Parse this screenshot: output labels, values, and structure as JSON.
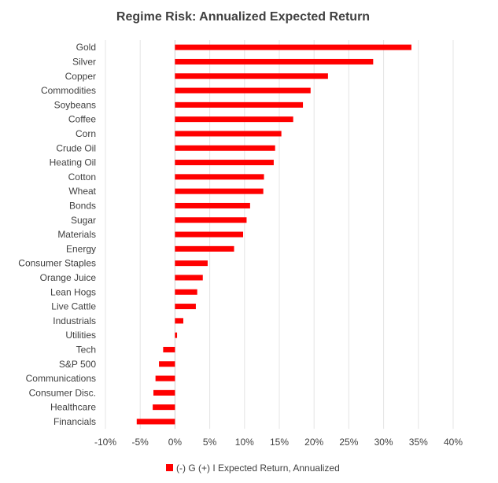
{
  "chart_data": {
    "type": "bar",
    "orientation": "horizontal",
    "title": "Regime Risk: Annualized Expected Return",
    "xlabel": "",
    "ylabel": "",
    "xlim": [
      -10,
      40
    ],
    "x_ticks": [
      -10,
      -5,
      0,
      5,
      10,
      15,
      20,
      25,
      30,
      35,
      40
    ],
    "x_tick_format": "percent",
    "grid": "vertical",
    "legend_position": "bottom",
    "categories": [
      "Gold",
      "Silver",
      "Copper",
      "Commodities",
      "Soybeans",
      "Coffee",
      "Corn",
      "Crude Oil",
      "Heating Oil",
      "Cotton",
      "Wheat",
      "Bonds",
      "Sugar",
      "Materials",
      "Energy",
      "Consumer Staples",
      "Orange Juice",
      "Lean Hogs",
      "Live Cattle",
      "Industrials",
      "Utilities",
      "Tech",
      "S&P 500",
      "Communications",
      "Consumer Disc.",
      "Healthcare",
      "Financials"
    ],
    "series": [
      {
        "name": "(-) G (+) I Expected Return, Annualized",
        "color": "#ff0000",
        "values": [
          34.0,
          28.5,
          22.0,
          19.5,
          18.4,
          17.0,
          15.3,
          14.4,
          14.2,
          12.8,
          12.7,
          10.8,
          10.3,
          9.8,
          8.5,
          4.7,
          4.0,
          3.2,
          3.0,
          1.2,
          0.3,
          -1.7,
          -2.3,
          -2.8,
          -3.1,
          -3.2,
          -5.5
        ]
      }
    ]
  }
}
